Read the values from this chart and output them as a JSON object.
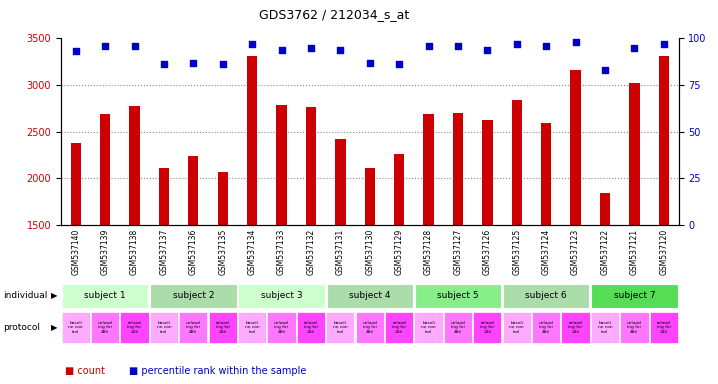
{
  "title": "GDS3762 / 212034_s_at",
  "samples": [
    "GSM537140",
    "GSM537139",
    "GSM537138",
    "GSM537137",
    "GSM537136",
    "GSM537135",
    "GSM537134",
    "GSM537133",
    "GSM537132",
    "GSM537131",
    "GSM537130",
    "GSM537129",
    "GSM537128",
    "GSM537127",
    "GSM537126",
    "GSM537125",
    "GSM537124",
    "GSM537123",
    "GSM537122",
    "GSM537121",
    "GSM537120"
  ],
  "counts": [
    2380,
    2690,
    2770,
    2110,
    2240,
    2070,
    3310,
    2780,
    2760,
    2420,
    2110,
    2260,
    2690,
    2700,
    2620,
    2840,
    2590,
    3160,
    1840,
    3020,
    3310
  ],
  "percentiles": [
    93,
    96,
    96,
    86,
    87,
    86,
    97,
    94,
    95,
    94,
    87,
    86,
    96,
    96,
    94,
    97,
    96,
    98,
    83,
    95,
    97
  ],
  "bar_color": "#cc0000",
  "dot_color": "#0000cc",
  "ylim_left": [
    1500,
    3500
  ],
  "ylim_right": [
    0,
    100
  ],
  "yticks_left": [
    1500,
    2000,
    2500,
    3000,
    3500
  ],
  "yticks_right": [
    0,
    25,
    50,
    75,
    100
  ],
  "grid_vals": [
    2000,
    2500,
    3000
  ],
  "grid_color": "#888888",
  "subjects": [
    {
      "label": "subject 1",
      "start": 0,
      "end": 3,
      "color": "#ccffcc"
    },
    {
      "label": "subject 2",
      "start": 3,
      "end": 6,
      "color": "#aaddaa"
    },
    {
      "label": "subject 3",
      "start": 6,
      "end": 9,
      "color": "#ccffcc"
    },
    {
      "label": "subject 4",
      "start": 9,
      "end": 12,
      "color": "#aaddaa"
    },
    {
      "label": "subject 5",
      "start": 12,
      "end": 15,
      "color": "#88ee88"
    },
    {
      "label": "subject 6",
      "start": 15,
      "end": 18,
      "color": "#aaddaa"
    },
    {
      "label": "subject 7",
      "start": 18,
      "end": 21,
      "color": "#55dd55"
    }
  ],
  "proto_labels": [
    "baseli\nne con\ntrol",
    "unload\ning for\n48h",
    "reload\ning for\n24h"
  ],
  "proto_colors": [
    "#ffaaff",
    "#ff77ff",
    "#ff44ff"
  ],
  "bar_color_red": "#cc0000",
  "dot_color_blue": "#0000cc",
  "bg_color": "#ffffff",
  "tick_label_area_color": "#cccccc",
  "left_label_color": "#cc0000",
  "right_label_color": "#0000cc"
}
